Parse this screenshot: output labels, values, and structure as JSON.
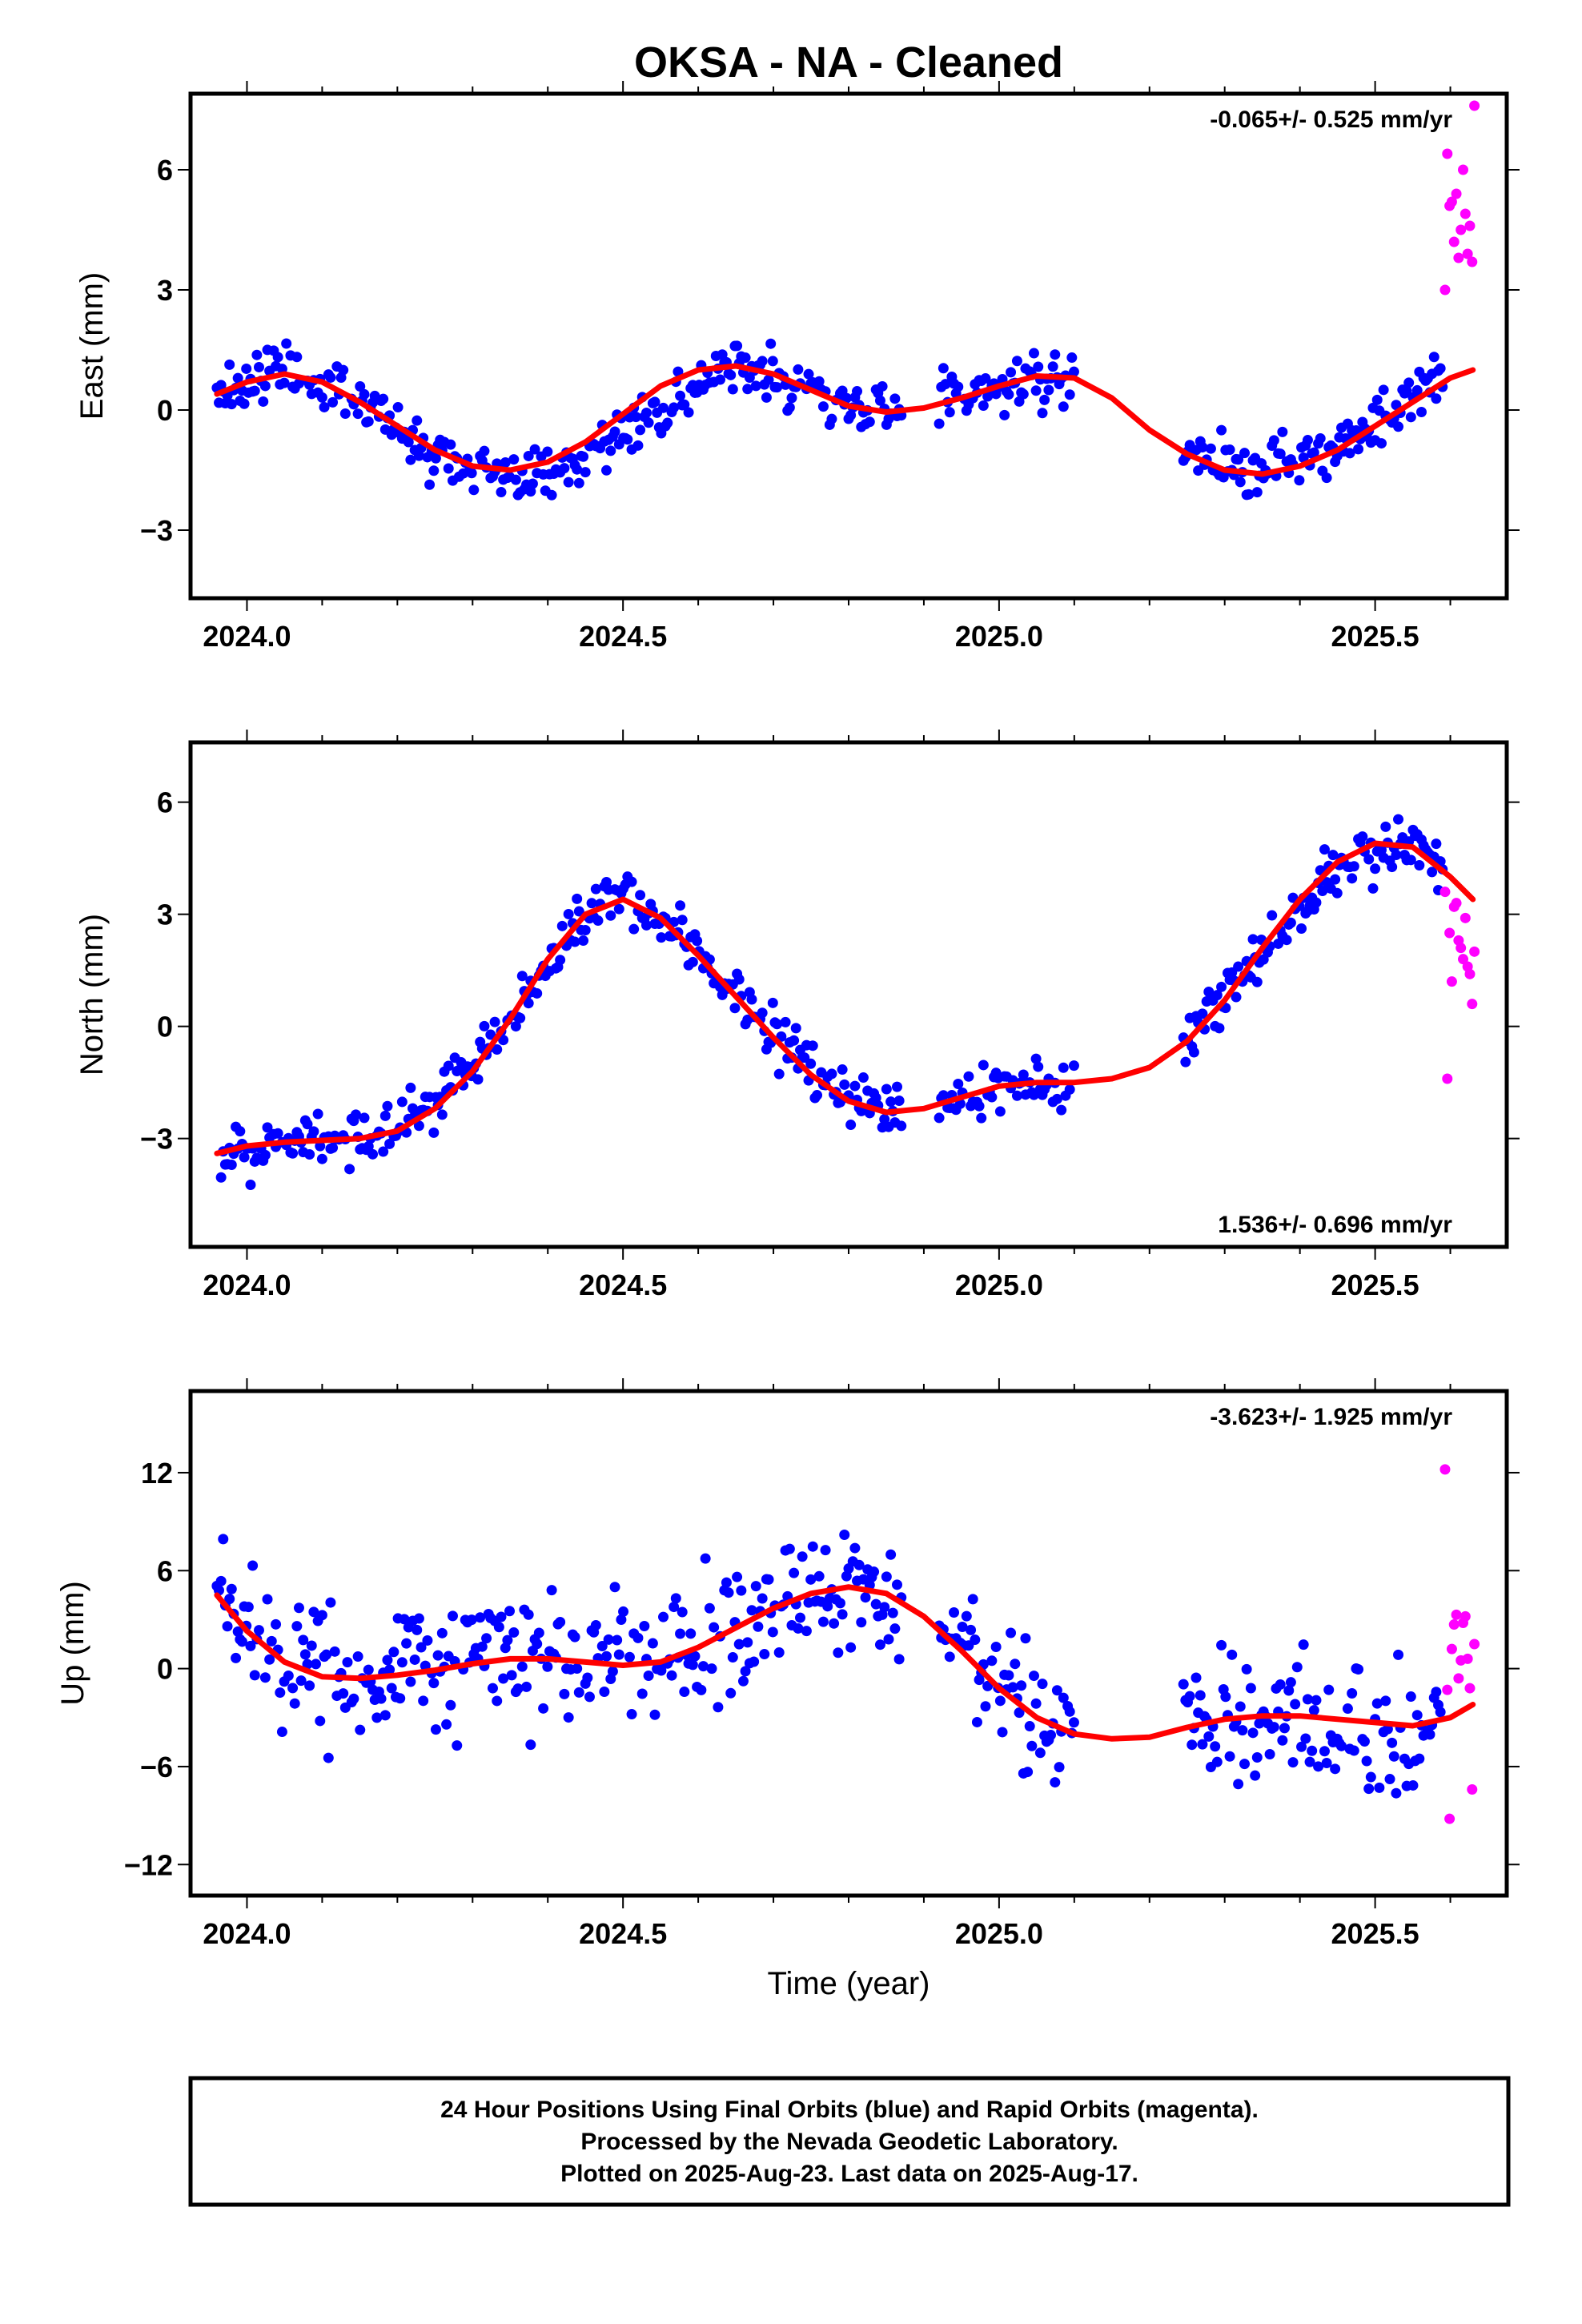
{
  "chart_data": {
    "type": "scatter",
    "title": "OKSA  - NA - Cleaned",
    "xlabel": "Time (year)",
    "xlim": [
      2023.925,
      2025.675
    ],
    "xticks": [
      "2024.0",
      "2024.5",
      "2025.0",
      "2025.5"
    ],
    "xtick_values": [
      2024.0,
      2024.5,
      2025.0,
      2025.5
    ],
    "grid": false,
    "colors": {
      "final": "#0000ff",
      "rapid": "#ff00ff",
      "fit": "#ff0000",
      "frame": "#000000"
    },
    "panels": [
      {
        "key": "east",
        "ylabel": "East (mm)",
        "ylim": [
          -4.7,
          7.9
        ],
        "yticks": [
          "−3",
          "0",
          "3",
          "6"
        ],
        "ytick_values": [
          -3,
          0,
          3,
          6
        ],
        "rate_text": "-0.065+/- 0.525 mm/yr",
        "rate_position": "top-right",
        "fit": {
          "x": [
            2023.96,
            2024.0,
            2024.05,
            2024.1,
            2024.15,
            2024.2,
            2024.25,
            2024.3,
            2024.35,
            2024.4,
            2024.45,
            2024.5,
            2024.55,
            2024.6,
            2024.65,
            2024.7,
            2024.75,
            2024.8,
            2024.85,
            2024.9,
            2024.95,
            2025.0,
            2025.05,
            2025.1,
            2025.15,
            2025.2,
            2025.25,
            2025.3,
            2025.35,
            2025.4,
            2025.45,
            2025.5,
            2025.55,
            2025.6,
            2025.63
          ],
          "y": [
            0.4,
            0.7,
            0.9,
            0.7,
            0.2,
            -0.4,
            -1.0,
            -1.4,
            -1.5,
            -1.3,
            -0.8,
            -0.1,
            0.6,
            1.0,
            1.1,
            0.9,
            0.5,
            0.1,
            -0.05,
            0.05,
            0.3,
            0.6,
            0.85,
            0.8,
            0.3,
            -0.5,
            -1.1,
            -1.5,
            -1.6,
            -1.4,
            -1.0,
            -0.4,
            0.2,
            0.8,
            1.0
          ]
        },
        "final": {
          "anchors": [
            [
              2023.96,
              0.4
            ],
            [
              2024.05,
              1.0
            ],
            [
              2024.15,
              0.3
            ],
            [
              2024.25,
              -1.0
            ],
            [
              2024.35,
              -1.6
            ],
            [
              2024.45,
              -1.2
            ],
            [
              2024.55,
              0.0
            ],
            [
              2024.65,
              1.1
            ],
            [
              2024.75,
              0.5
            ],
            [
              2024.85,
              -0.1
            ],
            [
              2024.95,
              0.4
            ],
            [
              2025.05,
              0.8
            ],
            [
              2025.1,
              0.6
            ],
            [
              2025.25,
              -1.1
            ],
            [
              2025.35,
              -1.5
            ],
            [
              2025.45,
              -0.9
            ],
            [
              2025.55,
              0.4
            ],
            [
              2025.59,
              0.9
            ]
          ],
          "gaps": [
            [
              2024.872,
              2024.918
            ],
            [
              2025.1,
              2025.245
            ]
          ],
          "spacing": 0.0028,
          "spread": 0.75,
          "seed": 11
        },
        "rapid": [
          [
            2025.593,
            3.0
          ],
          [
            2025.596,
            6.4
          ],
          [
            2025.599,
            5.1
          ],
          [
            2025.602,
            5.2
          ],
          [
            2025.605,
            4.2
          ],
          [
            2025.608,
            5.4
          ],
          [
            2025.611,
            3.8
          ],
          [
            2025.614,
            4.5
          ],
          [
            2025.617,
            6.0
          ],
          [
            2025.62,
            4.9
          ],
          [
            2025.623,
            3.9
          ],
          [
            2025.626,
            4.6
          ],
          [
            2025.629,
            3.7
          ],
          [
            2025.632,
            7.6
          ]
        ]
      },
      {
        "key": "north",
        "ylabel": "North (mm)",
        "ylim": [
          -5.9,
          7.6
        ],
        "yticks": [
          "−3",
          "0",
          "3",
          "6"
        ],
        "ytick_values": [
          -3,
          0,
          3,
          6
        ],
        "rate_text": "1.536+/- 0.696 mm/yr",
        "rate_position": "bottom-right",
        "fit": {
          "x": [
            2023.96,
            2024.0,
            2024.05,
            2024.1,
            2024.15,
            2024.2,
            2024.25,
            2024.3,
            2024.35,
            2024.4,
            2024.45,
            2024.5,
            2024.55,
            2024.6,
            2024.65,
            2024.7,
            2024.75,
            2024.8,
            2024.85,
            2024.9,
            2024.95,
            2025.0,
            2025.05,
            2025.1,
            2025.15,
            2025.2,
            2025.25,
            2025.3,
            2025.35,
            2025.4,
            2025.45,
            2025.5,
            2025.55,
            2025.6,
            2025.63
          ],
          "y": [
            -3.4,
            -3.2,
            -3.1,
            -3.05,
            -3.0,
            -2.8,
            -2.2,
            -1.2,
            0.2,
            1.8,
            3.0,
            3.4,
            2.9,
            1.9,
            0.8,
            -0.3,
            -1.3,
            -2.0,
            -2.3,
            -2.2,
            -1.9,
            -1.6,
            -1.5,
            -1.5,
            -1.4,
            -1.1,
            -0.4,
            0.7,
            2.1,
            3.4,
            4.4,
            4.9,
            4.8,
            4.0,
            3.4
          ]
        },
        "final": {
          "anchors": [
            [
              2023.96,
              -3.6
            ],
            [
              2024.05,
              -3.1
            ],
            [
              2024.15,
              -3.0
            ],
            [
              2024.25,
              -2.2
            ],
            [
              2024.35,
              0.2
            ],
            [
              2024.45,
              3.1
            ],
            [
              2024.5,
              3.5
            ],
            [
              2024.55,
              2.8
            ],
            [
              2024.65,
              0.9
            ],
            [
              2024.75,
              -1.3
            ],
            [
              2024.85,
              -2.4
            ],
            [
              2024.95,
              -1.8
            ],
            [
              2025.05,
              -1.4
            ],
            [
              2025.1,
              -1.4
            ],
            [
              2025.25,
              -0.4
            ],
            [
              2025.35,
              2.1
            ],
            [
              2025.45,
              4.4
            ],
            [
              2025.55,
              4.9
            ],
            [
              2025.59,
              4.3
            ]
          ],
          "gaps": [
            [
              2024.872,
              2024.918
            ],
            [
              2025.1,
              2025.245
            ]
          ],
          "spacing": 0.0028,
          "spread": 0.8,
          "seed": 23
        },
        "rapid": [
          [
            2025.593,
            3.6
          ],
          [
            2025.596,
            -1.4
          ],
          [
            2025.599,
            2.5
          ],
          [
            2025.602,
            1.2
          ],
          [
            2025.605,
            3.2
          ],
          [
            2025.608,
            3.3
          ],
          [
            2025.611,
            2.3
          ],
          [
            2025.614,
            2.1
          ],
          [
            2025.617,
            1.8
          ],
          [
            2025.62,
            2.9
          ],
          [
            2025.623,
            1.6
          ],
          [
            2025.626,
            1.4
          ],
          [
            2025.629,
            0.6
          ],
          [
            2025.632,
            2.0
          ]
        ]
      },
      {
        "key": "up",
        "ylabel": "Up (mm)",
        "ylim": [
          -13.9,
          17.0
        ],
        "yticks": [
          "−12",
          "−6",
          "0",
          "6",
          "12"
        ],
        "ytick_values": [
          -12,
          -6,
          0,
          6,
          12
        ],
        "rate_text": "-3.623+/- 1.925 mm/yr",
        "rate_position": "top-right",
        "fit": {
          "x": [
            2023.96,
            2024.0,
            2024.05,
            2024.1,
            2024.15,
            2024.2,
            2024.25,
            2024.3,
            2024.35,
            2024.4,
            2024.45,
            2024.5,
            2024.55,
            2024.6,
            2024.65,
            2024.7,
            2024.75,
            2024.8,
            2024.85,
            2024.9,
            2024.95,
            2025.0,
            2025.05,
            2025.1,
            2025.15,
            2025.2,
            2025.25,
            2025.3,
            2025.35,
            2025.4,
            2025.45,
            2025.5,
            2025.55,
            2025.6,
            2025.63
          ],
          "y": [
            4.5,
            2.3,
            0.4,
            -0.5,
            -0.6,
            -0.4,
            -0.1,
            0.3,
            0.6,
            0.6,
            0.4,
            0.2,
            0.4,
            1.3,
            2.5,
            3.7,
            4.6,
            5.0,
            4.6,
            3.2,
            1.1,
            -1.2,
            -3.0,
            -4.0,
            -4.3,
            -4.2,
            -3.6,
            -3.1,
            -2.9,
            -2.9,
            -3.1,
            -3.3,
            -3.5,
            -3.0,
            -2.2
          ]
        },
        "final": {
          "anchors": [
            [
              2023.96,
              4.0
            ],
            [
              2024.05,
              0.4
            ],
            [
              2024.15,
              -0.6
            ],
            [
              2024.25,
              -0.1
            ],
            [
              2024.35,
              0.6
            ],
            [
              2024.45,
              0.4
            ],
            [
              2024.55,
              0.4
            ],
            [
              2024.65,
              2.5
            ],
            [
              2024.75,
              4.6
            ],
            [
              2024.85,
              4.6
            ],
            [
              2024.95,
              1.1
            ],
            [
              2025.05,
              -3.0
            ],
            [
              2025.1,
              -3.5
            ],
            [
              2025.25,
              -3.6
            ],
            [
              2025.35,
              -2.9
            ],
            [
              2025.45,
              -3.1
            ],
            [
              2025.55,
              -3.5
            ],
            [
              2025.59,
              -3.2
            ]
          ],
          "gaps": [
            [
              2024.872,
              2024.918
            ],
            [
              2025.1,
              2025.245
            ]
          ],
          "spacing": 0.0028,
          "spread": 4.5,
          "seed": 37
        },
        "rapid": [
          [
            2025.593,
            12.2
          ],
          [
            2025.596,
            -1.3
          ],
          [
            2025.599,
            -9.2
          ],
          [
            2025.602,
            1.2
          ],
          [
            2025.605,
            2.7
          ],
          [
            2025.608,
            3.3
          ],
          [
            2025.611,
            -0.6
          ],
          [
            2025.614,
            0.5
          ],
          [
            2025.617,
            2.8
          ],
          [
            2025.62,
            3.2
          ],
          [
            2025.623,
            0.6
          ],
          [
            2025.626,
            -1.2
          ],
          [
            2025.629,
            -7.4
          ],
          [
            2025.632,
            1.5
          ]
        ]
      }
    ]
  },
  "footer": {
    "line1": "24 Hour Positions Using Final Orbits (blue) and Rapid Orbits (magenta).",
    "line2": "Processed by the Nevada Geodetic Laboratory.",
    "line3": "Plotted on 2025-Aug-23. Last data on 2025-Aug-17."
  }
}
